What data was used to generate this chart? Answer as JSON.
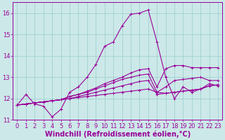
{
  "background_color": "#cce8e8",
  "grid_color": "#99cccc",
  "line_color": "#990099",
  "marker": "+",
  "xlabel": "Windchill (Refroidissement éolien,°C)",
  "xlabel_fontsize": 7,
  "tick_fontsize": 6,
  "xlim": [
    -0.5,
    23.5
  ],
  "ylim": [
    11.0,
    16.5
  ],
  "yticks": [
    11,
    12,
    13,
    14,
    15,
    16
  ],
  "xticks": [
    0,
    1,
    2,
    3,
    4,
    5,
    6,
    7,
    8,
    9,
    10,
    11,
    12,
    13,
    14,
    15,
    16,
    17,
    18,
    19,
    20,
    21,
    22,
    23
  ],
  "lines": [
    [
      11.7,
      12.2,
      11.75,
      11.65,
      11.15,
      11.5,
      12.3,
      12.55,
      13.0,
      13.6,
      14.45,
      14.65,
      15.4,
      15.95,
      16.0,
      16.15,
      14.65,
      13.0,
      12.0,
      12.55,
      12.3,
      12.45,
      12.7,
      12.6
    ],
    [
      11.7,
      11.75,
      11.8,
      11.85,
      11.9,
      11.95,
      12.0,
      12.05,
      12.1,
      12.15,
      12.2,
      12.25,
      12.3,
      12.35,
      12.4,
      12.45,
      12.3,
      12.25,
      12.3,
      12.35,
      12.4,
      12.45,
      12.6,
      12.65
    ],
    [
      11.7,
      11.75,
      11.8,
      11.85,
      11.9,
      11.95,
      12.0,
      12.1,
      12.2,
      12.3,
      12.4,
      12.5,
      12.6,
      12.7,
      12.8,
      12.85,
      12.2,
      12.25,
      12.3,
      12.35,
      12.4,
      12.45,
      12.6,
      12.65
    ],
    [
      11.7,
      11.75,
      11.8,
      11.85,
      11.9,
      11.95,
      12.1,
      12.2,
      12.3,
      12.45,
      12.6,
      12.75,
      12.9,
      13.0,
      13.1,
      13.15,
      12.3,
      12.55,
      12.85,
      12.9,
      12.95,
      13.0,
      12.85,
      12.85
    ],
    [
      11.7,
      11.75,
      11.8,
      11.85,
      11.9,
      11.95,
      12.1,
      12.2,
      12.35,
      12.5,
      12.7,
      12.85,
      13.0,
      13.2,
      13.35,
      13.4,
      12.55,
      13.4,
      13.55,
      13.55,
      13.45,
      13.45,
      13.45,
      13.45
    ]
  ]
}
